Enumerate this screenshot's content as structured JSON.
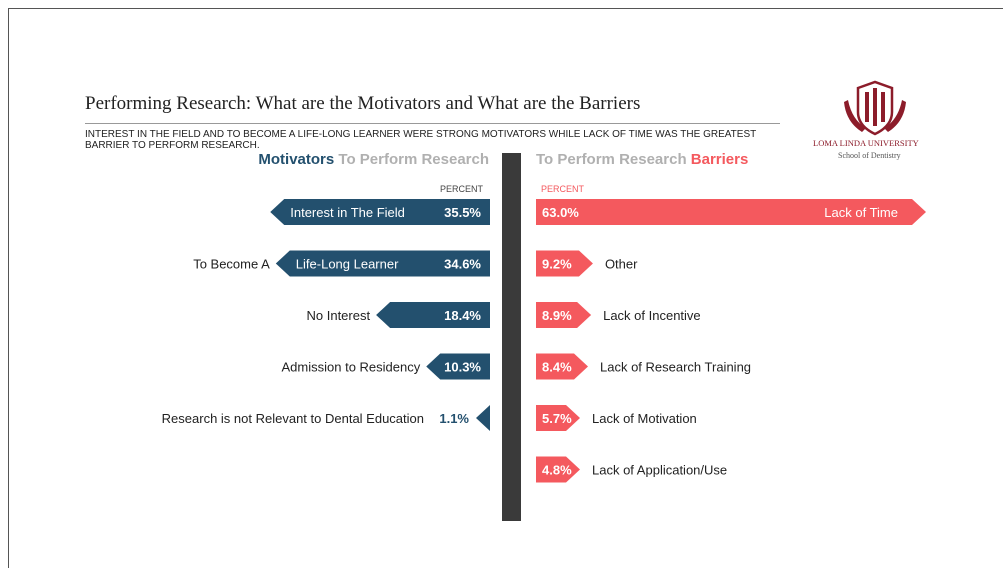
{
  "title": "Performing Research: What are the Motivators and What are the Barriers",
  "subtitle": "INTEREST IN THE FIELD AND TO BECOME A LIFE-LONG LEARNER WERE STRONG MOTIVATORS WHILE LACK OF TIME WAS THE GREATEST BARRIER TO PERFORM RESEARCH.",
  "logo": {
    "icon": "university-crest-icon",
    "name": "LOMA LINDA UNIVERSITY",
    "school": "School of Dentistry"
  },
  "colors": {
    "motivators": "#23506e",
    "barriers": "#f4595e",
    "muted": "#b0b0b0",
    "divider": "#3a3a3a"
  },
  "left_heading": {
    "strong": "Motivators",
    "rest": "To Perform Research"
  },
  "right_heading": {
    "rest": "To Perform Research",
    "strong": "Barriers"
  },
  "unit_left": "PERCENT",
  "unit_right": "PERCENT",
  "chart_data": [
    {
      "type": "bar",
      "orientation": "horizontal",
      "direction": "leftward",
      "categories": [
        "Interest in The Field",
        "To Become A Life-Long Learner",
        "No Interest",
        "Admission to Residency",
        "Research is not Relevant to Dental Education"
      ],
      "label_parts": [
        [
          "",
          "Interest in The Field"
        ],
        [
          "To Become A",
          "Life-Long Learner"
        ],
        [
          "No Interest",
          ""
        ],
        [
          "Admission to Residency",
          ""
        ],
        [
          "Research is not Relevant to Dental Education",
          ""
        ]
      ],
      "values": [
        35.5,
        34.6,
        18.4,
        10.3,
        1.1
      ],
      "value_labels": [
        "35.5%",
        "34.6%",
        "18.4%",
        "10.3%",
        "1.1%"
      ],
      "xlim": [
        0,
        63
      ]
    },
    {
      "type": "bar",
      "orientation": "horizontal",
      "direction": "rightward",
      "categories": [
        "Lack of Time",
        "Other",
        "Lack of Incentive",
        "Lack of Research Training",
        "Lack of Motivation",
        "Lack of Application/Use"
      ],
      "values": [
        63.0,
        9.2,
        8.9,
        8.4,
        5.7,
        4.8
      ],
      "value_labels": [
        "63.0%",
        "9.2%",
        "8.9%",
        "8.4%",
        "5.7%",
        "4.8%"
      ],
      "xlim": [
        0,
        63
      ]
    }
  ]
}
